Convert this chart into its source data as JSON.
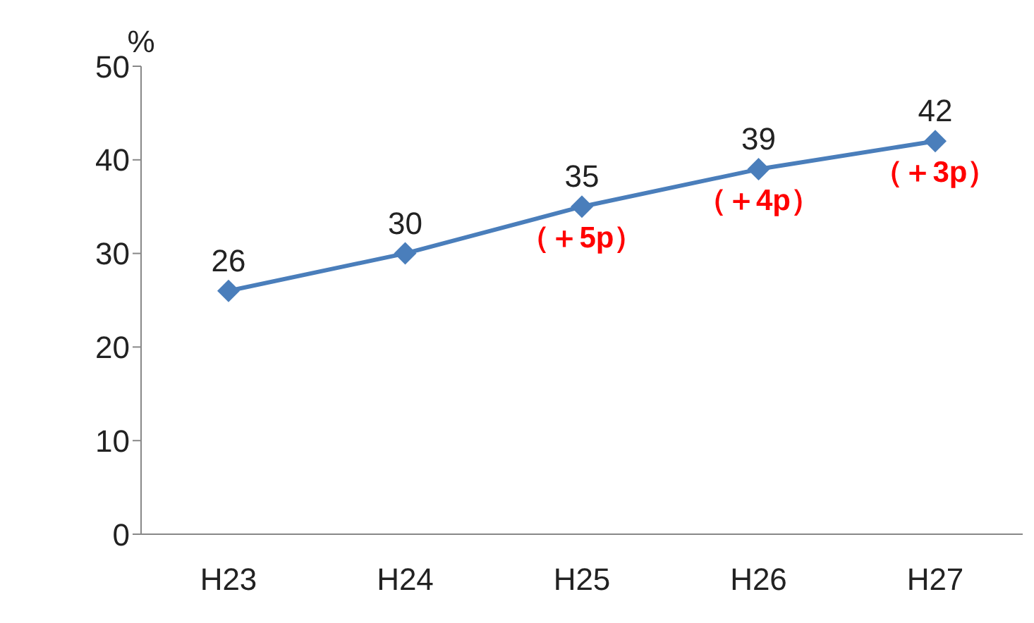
{
  "chart_data": {
    "type": "line",
    "ylabel": "%",
    "categories": [
      "H23",
      "H24",
      "H25",
      "H26",
      "H27"
    ],
    "series": [
      {
        "color": "#4a7ebb",
        "values": [
          26,
          30,
          35,
          39,
          42
        ]
      }
    ],
    "ylim": [
      0,
      50
    ],
    "yticks": [
      0,
      10,
      20,
      30,
      40,
      50
    ],
    "grid": false,
    "legend": false,
    "marker": "diamond",
    "line_style": "solid",
    "data_labels": true,
    "annotations": [
      {
        "text": "（＋5p）",
        "x": "H25",
        "y": 35
      },
      {
        "text": "（＋4p）",
        "x": "H26",
        "y": 39
      },
      {
        "text": "（＋3p）",
        "x": "H27",
        "y": 42
      }
    ]
  }
}
